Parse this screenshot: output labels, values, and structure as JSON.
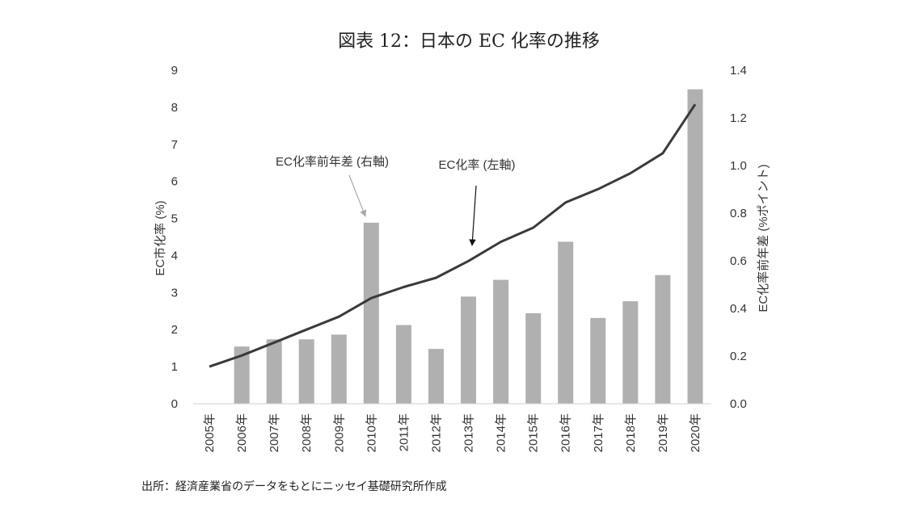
{
  "chart_data": {
    "type": "bar+line",
    "title": "図表 12：日本の EC 化率の推移",
    "categories": [
      "2005年",
      "2006年",
      "2007年",
      "2008年",
      "2009年",
      "2010年",
      "2011年",
      "2012年",
      "2013年",
      "2014年",
      "2015年",
      "2016年",
      "2017年",
      "2018年",
      "2019年",
      "2020年"
    ],
    "series": [
      {
        "name": "EC化率前年差 (右軸)",
        "type": "bar",
        "axis": "right",
        "color": "#b0b0b0",
        "values": [
          null,
          0.24,
          0.27,
          0.27,
          0.29,
          0.76,
          0.33,
          0.23,
          0.45,
          0.52,
          0.38,
          0.68,
          0.36,
          0.43,
          0.54,
          1.32
        ]
      },
      {
        "name": "EC化率 (左軸)",
        "type": "line",
        "axis": "left",
        "color": "#3a3a3a",
        "values": [
          1.0,
          1.3,
          1.65,
          2.0,
          2.35,
          2.85,
          3.15,
          3.4,
          3.85,
          4.37,
          4.75,
          5.43,
          5.79,
          6.22,
          6.76,
          8.08
        ]
      }
    ],
    "left_axis": {
      "label": "EC市化率 (%)",
      "ylim": [
        0,
        9
      ],
      "ticks": [
        "0",
        "1",
        "2",
        "3",
        "4",
        "5",
        "6",
        "7",
        "8",
        "9"
      ]
    },
    "right_axis": {
      "label": "EC化率前年差 (%ポイント)",
      "ylim": [
        0,
        1.4
      ],
      "ticks": [
        "0.0",
        "0.2",
        "0.4",
        "0.6",
        "0.8",
        "1.0",
        "1.2",
        "1.4"
      ]
    },
    "annotations": [
      {
        "text": "EC化率前年差 (右軸)",
        "points_to": "2010年",
        "series": "bar"
      },
      {
        "text": "EC化率 (左軸)",
        "points_to": "2013年",
        "series": "line"
      }
    ],
    "source": "出所：経済産業省のデータをもとにニッセイ基礎研究所作成",
    "grid": false
  }
}
